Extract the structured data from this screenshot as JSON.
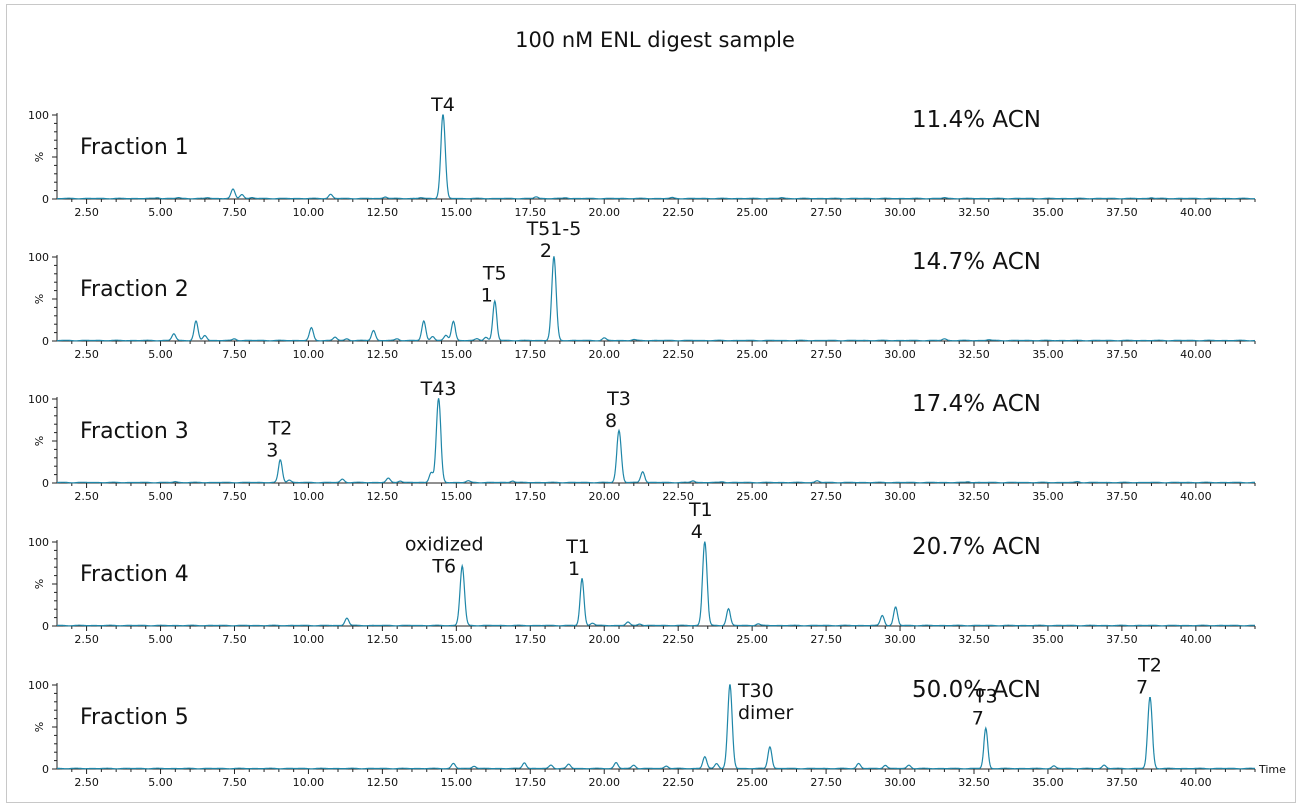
{
  "chart_data": {
    "type": "line",
    "title": "100 nM ENL digest sample",
    "xlabel": "Time",
    "xlim": [
      1.5,
      42.0
    ],
    "ylim": [
      0,
      100
    ],
    "x_ticks": [
      "2.50",
      "5.00",
      "7.50",
      "10.00",
      "12.50",
      "15.00",
      "17.50",
      "20.00",
      "22.50",
      "25.00",
      "27.50",
      "30.00",
      "32.50",
      "35.00",
      "37.50",
      "40.00"
    ],
    "y_ticks": [
      "0",
      "100"
    ],
    "y_unit_label": "%",
    "line_color": "#1f86a8",
    "panels": [
      {
        "name": "Fraction 1",
        "acn": "11.4% ACN",
        "peaks": [
          {
            "x": 4.9,
            "y": 1
          },
          {
            "x": 5.6,
            "y": 1
          },
          {
            "x": 6.6,
            "y": 1
          },
          {
            "x": 7.45,
            "y": 11
          },
          {
            "x": 7.75,
            "y": 5
          },
          {
            "x": 8.1,
            "y": 1
          },
          {
            "x": 10.75,
            "y": 5
          },
          {
            "x": 12.6,
            "y": 2
          },
          {
            "x": 13.8,
            "y": 1
          },
          {
            "x": 14.55,
            "y": 100
          },
          {
            "x": 17.7,
            "y": 2
          },
          {
            "x": 18.7,
            "y": 1
          },
          {
            "x": 22.3,
            "y": 1
          },
          {
            "x": 26.0,
            "y": 1
          },
          {
            "x": 31.5,
            "y": 1
          },
          {
            "x": 38.5,
            "y": 1
          }
        ],
        "annotations": [
          {
            "lines": [
              "T4"
            ],
            "x": 14.55
          }
        ]
      },
      {
        "name": "Fraction 2",
        "acn": "14.7% ACN",
        "peaks": [
          {
            "x": 5.45,
            "y": 8
          },
          {
            "x": 6.2,
            "y": 23
          },
          {
            "x": 6.5,
            "y": 6
          },
          {
            "x": 7.5,
            "y": 2
          },
          {
            "x": 10.1,
            "y": 15
          },
          {
            "x": 10.9,
            "y": 4
          },
          {
            "x": 11.3,
            "y": 2
          },
          {
            "x": 12.2,
            "y": 12
          },
          {
            "x": 13.0,
            "y": 2
          },
          {
            "x": 13.9,
            "y": 23
          },
          {
            "x": 14.2,
            "y": 5
          },
          {
            "x": 14.65,
            "y": 6
          },
          {
            "x": 14.9,
            "y": 23
          },
          {
            "x": 15.7,
            "y": 2
          },
          {
            "x": 16.0,
            "y": 4
          },
          {
            "x": 16.3,
            "y": 47
          },
          {
            "x": 18.3,
            "y": 100
          },
          {
            "x": 20.0,
            "y": 3
          },
          {
            "x": 21.0,
            "y": 1
          },
          {
            "x": 31.5,
            "y": 2
          },
          {
            "x": 33.0,
            "y": 1
          }
        ],
        "annotations": [
          {
            "lines": [
              "T5",
              "1"
            ],
            "x": 16.3
          },
          {
            "lines": [
              "T51-5",
              "2"
            ],
            "x": 18.3
          }
        ]
      },
      {
        "name": "Fraction 3",
        "acn": "17.4% ACN",
        "peaks": [
          {
            "x": 5.5,
            "y": 1
          },
          {
            "x": 9.05,
            "y": 27
          },
          {
            "x": 9.35,
            "y": 3
          },
          {
            "x": 11.15,
            "y": 4
          },
          {
            "x": 12.7,
            "y": 5
          },
          {
            "x": 13.1,
            "y": 2
          },
          {
            "x": 14.15,
            "y": 12
          },
          {
            "x": 14.4,
            "y": 100
          },
          {
            "x": 15.4,
            "y": 2
          },
          {
            "x": 16.9,
            "y": 2
          },
          {
            "x": 20.5,
            "y": 62
          },
          {
            "x": 21.3,
            "y": 13
          },
          {
            "x": 23.0,
            "y": 2
          },
          {
            "x": 24.0,
            "y": 1
          },
          {
            "x": 27.2,
            "y": 2
          },
          {
            "x": 32.3,
            "y": 1
          },
          {
            "x": 36.0,
            "y": 1
          }
        ],
        "annotations": [
          {
            "lines": [
              "T43"
            ],
            "x": 14.4
          },
          {
            "lines": [
              "T2",
              "3"
            ],
            "x": 9.05
          },
          {
            "lines": [
              "T3",
              "8"
            ],
            "x": 20.5
          }
        ]
      },
      {
        "name": "Fraction 4",
        "acn": "20.7% ACN",
        "peaks": [
          {
            "x": 11.3,
            "y": 9
          },
          {
            "x": 15.2,
            "y": 71
          },
          {
            "x": 19.25,
            "y": 56
          },
          {
            "x": 19.6,
            "y": 3
          },
          {
            "x": 20.8,
            "y": 4
          },
          {
            "x": 21.2,
            "y": 2
          },
          {
            "x": 23.4,
            "y": 100
          },
          {
            "x": 24.2,
            "y": 20
          },
          {
            "x": 25.2,
            "y": 2
          },
          {
            "x": 29.4,
            "y": 12
          },
          {
            "x": 29.85,
            "y": 22
          }
        ],
        "annotations": [
          {
            "lines": [
              "oxidized",
              "T6"
            ],
            "x": 15.2
          },
          {
            "lines": [
              "T1",
              "1"
            ],
            "x": 19.25
          },
          {
            "lines": [
              "T1",
              "4"
            ],
            "x": 23.4
          }
        ]
      },
      {
        "name": "Fraction 5",
        "acn": "50.0% ACN",
        "peaks": [
          {
            "x": 14.9,
            "y": 6
          },
          {
            "x": 15.6,
            "y": 3
          },
          {
            "x": 17.3,
            "y": 7
          },
          {
            "x": 18.2,
            "y": 4
          },
          {
            "x": 18.8,
            "y": 5
          },
          {
            "x": 20.4,
            "y": 7
          },
          {
            "x": 21.0,
            "y": 4
          },
          {
            "x": 22.1,
            "y": 3
          },
          {
            "x": 23.4,
            "y": 14
          },
          {
            "x": 23.8,
            "y": 6
          },
          {
            "x": 24.25,
            "y": 100
          },
          {
            "x": 25.6,
            "y": 26
          },
          {
            "x": 28.6,
            "y": 6
          },
          {
            "x": 29.5,
            "y": 4
          },
          {
            "x": 30.3,
            "y": 4
          },
          {
            "x": 32.9,
            "y": 48
          },
          {
            "x": 35.2,
            "y": 3
          },
          {
            "x": 36.9,
            "y": 4
          },
          {
            "x": 38.45,
            "y": 85
          }
        ],
        "annotations": [
          {
            "lines": [
              "T30",
              "dimer"
            ],
            "x": 24.25
          },
          {
            "lines": [
              "T3",
              "7"
            ],
            "x": 32.9
          },
          {
            "lines": [
              "T2",
              "7"
            ],
            "x": 38.45
          }
        ]
      }
    ]
  }
}
